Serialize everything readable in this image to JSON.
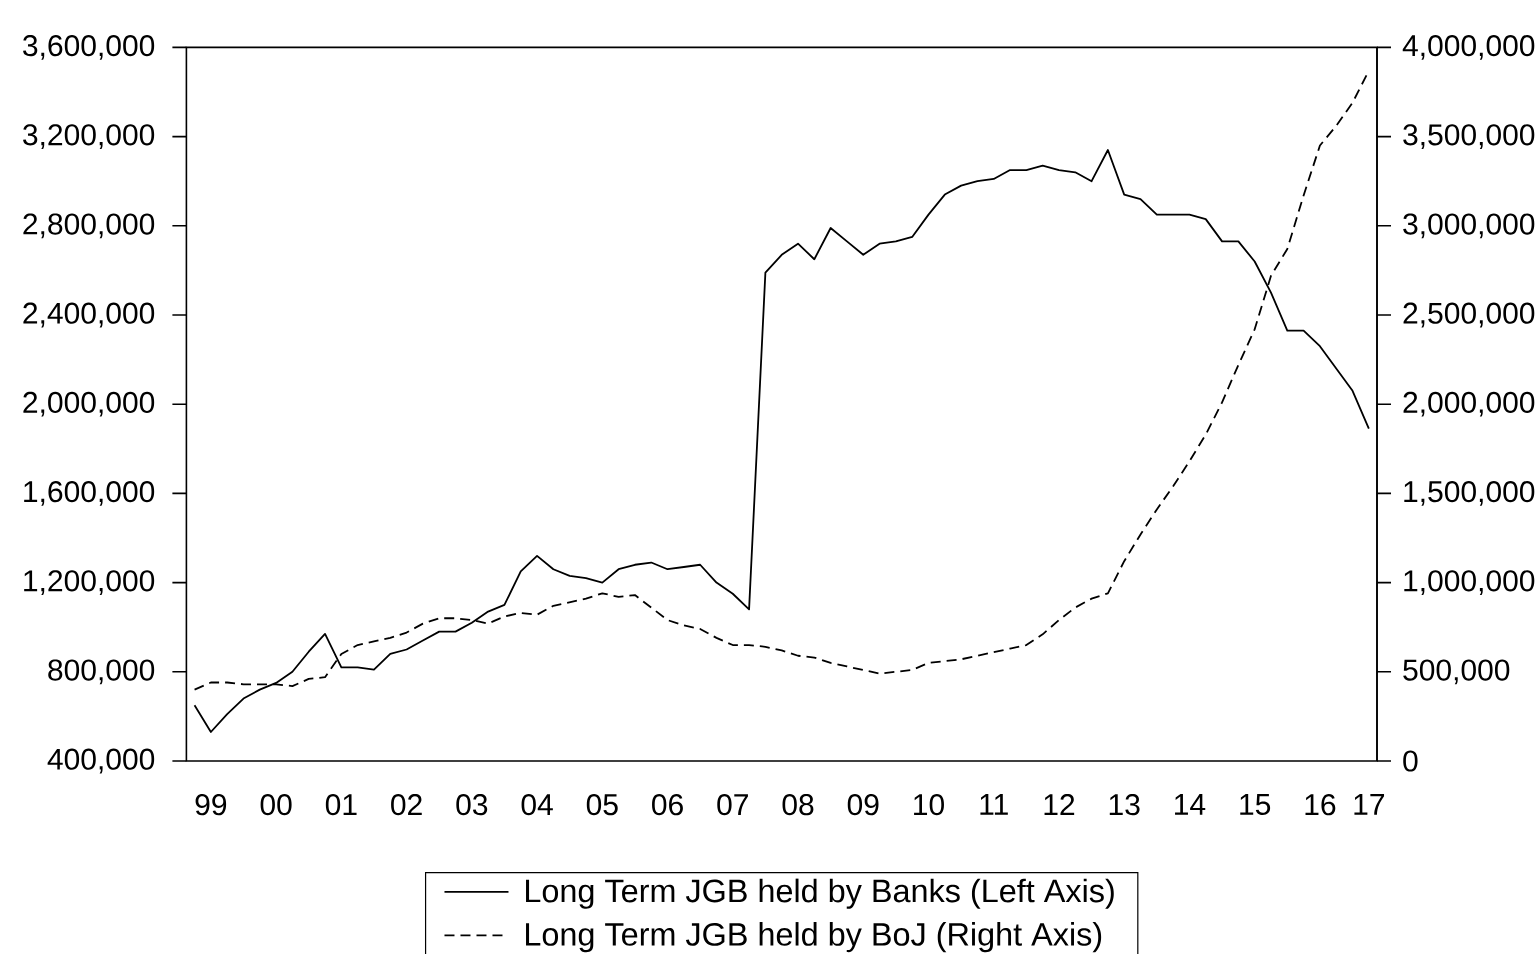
{
  "chart_data": {
    "type": "line",
    "categories": [
      null,
      "99",
      null,
      null,
      null,
      "00",
      null,
      null,
      null,
      "01",
      null,
      null,
      null,
      "02",
      null,
      null,
      null,
      "03",
      null,
      null,
      null,
      "04",
      null,
      null,
      null,
      "05",
      null,
      null,
      null,
      "06",
      null,
      null,
      null,
      "07",
      null,
      null,
      null,
      "08",
      null,
      null,
      null,
      "09",
      null,
      null,
      null,
      "10",
      null,
      null,
      null,
      "11",
      null,
      null,
      null,
      "12",
      null,
      null,
      null,
      "13",
      null,
      null,
      null,
      "14",
      null,
      null,
      null,
      "15",
      null,
      null,
      null,
      "16",
      null,
      null,
      "17"
    ],
    "series": [
      {
        "name": "Long Term JGB held by Banks (Left Axis)",
        "color": "#000000",
        "line_style": "solid",
        "values": [
          650000,
          530000,
          610000,
          680000,
          720000,
          750000,
          800000,
          890000,
          970000,
          820000,
          820000,
          810000,
          880000,
          900000,
          940000,
          980000,
          980000,
          1020000,
          1070000,
          1100000,
          1250000,
          1320000,
          1260000,
          1230000,
          1220000,
          1200000,
          1260000,
          1280000,
          1290000,
          1260000,
          1270000,
          1280000,
          1200000,
          1150000,
          1080000,
          2590000,
          2670000,
          2720000,
          2650000,
          2790000,
          2730000,
          2670000,
          2720000,
          2730000,
          2750000,
          2850000,
          2940000,
          2980000,
          3000000,
          3010000,
          3050000,
          3050000,
          3070000,
          3050000,
          3040000,
          3000000,
          3140000,
          2940000,
          2920000,
          2850000,
          2850000,
          2850000,
          2830000,
          2730000,
          2730000,
          2640000,
          2500000,
          2330000,
          2330000,
          2260000,
          2160000,
          2060000,
          1890000
        ]
      },
      {
        "name": "Long Term JGB held by BoJ (Right Axis)",
        "color": "#000000",
        "line_style": "dashed",
        "axis": "y2",
        "values": [
          400000,
          440000,
          440000,
          430000,
          430000,
          430000,
          420000,
          460000,
          470000,
          600000,
          650000,
          670000,
          690000,
          720000,
          770000,
          800000,
          800000,
          790000,
          770000,
          810000,
          830000,
          820000,
          870000,
          890000,
          910000,
          940000,
          920000,
          930000,
          860000,
          790000,
          760000,
          740000,
          690000,
          650000,
          650000,
          640000,
          620000,
          590000,
          580000,
          550000,
          530000,
          510000,
          490000,
          500000,
          510000,
          550000,
          560000,
          570000,
          590000,
          610000,
          630000,
          650000,
          710000,
          790000,
          860000,
          910000,
          940000,
          1120000,
          1270000,
          1410000,
          1540000,
          1680000,
          1830000,
          2010000,
          2220000,
          2420000,
          2720000,
          2870000,
          3170000,
          3450000,
          3560000,
          3690000,
          3870000
        ]
      }
    ],
    "ylim": [
      400000,
      3600000
    ],
    "yticks": [
      {
        "value": 400000,
        "label": "400,000"
      },
      {
        "value": 800000,
        "label": "800,000"
      },
      {
        "value": 1200000,
        "label": "1,200,000"
      },
      {
        "value": 1600000,
        "label": "1,600,000"
      },
      {
        "value": 2000000,
        "label": "2,000,000"
      },
      {
        "value": 2400000,
        "label": "2,400,000"
      },
      {
        "value": 2800000,
        "label": "2,800,000"
      },
      {
        "value": 3200000,
        "label": "3,200,000"
      },
      {
        "value": 3600000,
        "label": "3,600,000"
      }
    ],
    "y2lim": [
      0,
      4000000
    ],
    "y2ticks": [
      0,
      {
        "value": 500000,
        "label": "500,000"
      },
      {
        "value": 1000000,
        "label": "1,000,000"
      },
      {
        "value": 1500000,
        "label": "1,500,000"
      },
      {
        "value": 2000000,
        "label": "2,000,000"
      },
      {
        "value": 2500000,
        "label": "2,500,000"
      },
      {
        "value": 3000000,
        "label": "3,000,000"
      },
      {
        "value": 3500000,
        "label": "3,500,000"
      },
      {
        "value": 4000000,
        "label": "4,000,000"
      }
    ],
    "legend": "bottom"
  }
}
